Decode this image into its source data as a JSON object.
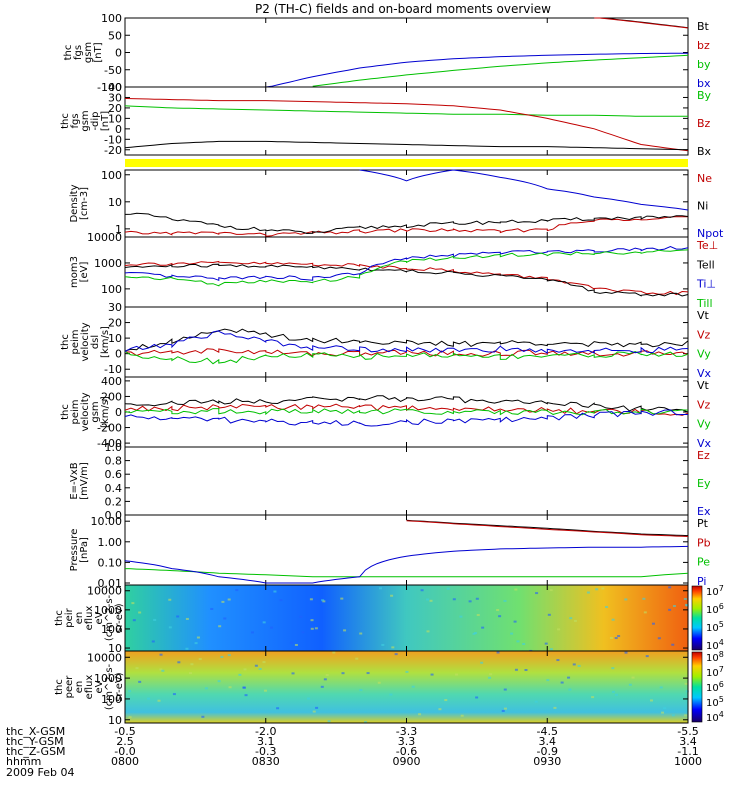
{
  "title": "P2 (TH-C) fields and on-board moments overview",
  "date": "2009 Feb 04",
  "footer": {
    "rows": [
      {
        "label": "thc_X-GSM",
        "values": [
          "-0.5",
          "-2.0",
          "-3.3",
          "-4.5",
          "-5.5"
        ]
      },
      {
        "label": "thc_Y-GSM",
        "values": [
          "2.5",
          "3.1",
          "3.3",
          "3.4",
          "3.4"
        ]
      },
      {
        "label": "thc_Z-GSM",
        "values": [
          "-0.0",
          "-0.3",
          "-0.6",
          "-0.9",
          "-1.1"
        ]
      },
      {
        "label": "hhmm",
        "values": [
          "0800",
          "0830",
          "0900",
          "0930",
          "1000"
        ]
      }
    ]
  },
  "colors": {
    "black": "#000000",
    "red": "#c00000",
    "green": "#00c000",
    "blue": "#0000d0",
    "yellow": "#ffff00"
  },
  "chart_data": [
    {
      "type": "line",
      "ylabel": [
        "thc",
        "fgs",
        "gsm",
        "[nT]"
      ],
      "scale": "linear",
      "ylim": [
        -100,
        100
      ],
      "yticks": [
        "100",
        "50",
        "0",
        "-50",
        "-100"
      ],
      "x": [
        0,
        10,
        20,
        30,
        40,
        50,
        60,
        70,
        80,
        90,
        100,
        110,
        120
      ],
      "series": [
        {
          "name": "Bt",
          "color": "#000000",
          "values": [
            null,
            null,
            null,
            null,
            null,
            null,
            null,
            null,
            null,
            null,
            103,
            88,
            72
          ]
        },
        {
          "name": "bz",
          "color": "#c00000",
          "values": [
            null,
            null,
            null,
            null,
            null,
            null,
            null,
            null,
            null,
            null,
            102,
            87,
            71
          ]
        },
        {
          "name": "by",
          "color": "#00c000",
          "values": [
            null,
            null,
            null,
            null,
            -98,
            -80,
            -65,
            -52,
            -40,
            -30,
            -22,
            -15,
            -8
          ]
        },
        {
          "name": "bx",
          "color": "#0000d0",
          "values": [
            null,
            null,
            null,
            -102,
            -70,
            -45,
            -28,
            -18,
            -12,
            -8,
            -5,
            -3,
            -2
          ]
        }
      ]
    },
    {
      "type": "line",
      "ylabel": [
        "thc",
        "fgs",
        "gsm",
        "-dip",
        "[nT]"
      ],
      "scale": "linear",
      "ylim": [
        -25,
        40
      ],
      "yticks": [
        "40",
        "30",
        "20",
        "10",
        "0",
        "-10",
        "-20"
      ],
      "x": [
        0,
        10,
        20,
        30,
        40,
        50,
        60,
        70,
        80,
        90,
        100,
        110,
        120
      ],
      "series": [
        {
          "name": "By",
          "color": "#00c000",
          "values": [
            22,
            20,
            19,
            18,
            17,
            16,
            15,
            14,
            14,
            13,
            13,
            12,
            12
          ]
        },
        {
          "name": "Bz",
          "color": "#c00000",
          "values": [
            29,
            28,
            27,
            27,
            26,
            25,
            24,
            22,
            18,
            10,
            0,
            -15,
            -21
          ]
        },
        {
          "name": "Bx",
          "color": "#000000",
          "values": [
            -18,
            -14,
            -12,
            -12,
            -13,
            -14,
            -15,
            -16,
            -17,
            -17,
            -18,
            -19,
            -20
          ]
        }
      ]
    },
    {
      "type": "line",
      "ylabel": [
        "Density",
        "[cm-3]"
      ],
      "scale": "log",
      "ylim": [
        0.5,
        150
      ],
      "yticks": [
        "100",
        "10",
        "1"
      ],
      "x": [
        0,
        10,
        20,
        30,
        40,
        50,
        60,
        70,
        80,
        90,
        100,
        110,
        120
      ],
      "series": [
        {
          "name": "Ne",
          "color": "#c00000",
          "values": [
            0.7,
            0.7,
            0.7,
            0.6,
            0.7,
            0.8,
            0.9,
            0.9,
            0.8,
            1.0,
            2.0,
            2.5,
            2.8
          ]
        },
        {
          "name": "Ni",
          "color": "#000000",
          "values": [
            4.0,
            2.2,
            1.3,
            0.9,
            0.7,
            1.1,
            1.3,
            1.6,
            1.8,
            2.0,
            2.4,
            2.6,
            2.7
          ]
        },
        {
          "name": "Npot",
          "color": "#0000d0",
          "values": [
            null,
            null,
            null,
            null,
            null,
            150,
            60,
            150,
            80,
            30,
            15,
            8,
            5
          ]
        }
      ]
    },
    {
      "type": "line",
      "ylabel": [
        "mom3",
        "[eV]"
      ],
      "scale": "log",
      "ylim": [
        20,
        10000
      ],
      "yticks": [
        "10000",
        "1000",
        "100"
      ],
      "x": [
        0,
        10,
        20,
        30,
        40,
        50,
        60,
        70,
        80,
        90,
        100,
        110,
        120
      ],
      "series": [
        {
          "name": "Te⊥",
          "color": "#c00000",
          "values": [
            900,
            950,
            1000,
            950,
            900,
            800,
            650,
            500,
            350,
            250,
            100,
            70,
            70
          ]
        },
        {
          "name": "Tell",
          "color": "#000000",
          "values": [
            700,
            750,
            800,
            750,
            700,
            600,
            500,
            400,
            320,
            220,
            80,
            60,
            60
          ]
        },
        {
          "name": "Ti⊥",
          "color": "#0000d0",
          "values": [
            400,
            300,
            250,
            300,
            250,
            400,
            1500,
            2000,
            2500,
            2800,
            3000,
            3500,
            4000
          ]
        },
        {
          "name": "Till",
          "color": "#00c000",
          "values": [
            300,
            250,
            150,
            200,
            180,
            300,
            1200,
            1600,
            2000,
            2200,
            2400,
            2600,
            2800
          ]
        }
      ]
    },
    {
      "type": "line",
      "ylabel": [
        "thc",
        "peim",
        "velocity",
        "dsl",
        "[km/s]"
      ],
      "scale": "linear",
      "ylim": [
        -15,
        30
      ],
      "yticks": [
        "30",
        "20",
        "10",
        "0",
        "-10"
      ],
      "x": [
        0,
        10,
        20,
        30,
        40,
        50,
        60,
        70,
        80,
        90,
        100,
        110,
        120
      ],
      "series": [
        {
          "name": "Vt",
          "color": "#000000",
          "values": [
            3,
            8,
            16,
            12,
            9,
            8,
            7,
            6,
            7,
            7,
            6,
            6,
            7
          ]
        },
        {
          "name": "Vz",
          "color": "#c00000",
          "values": [
            0,
            1,
            2,
            1,
            0,
            0,
            1,
            0,
            0,
            1,
            0,
            0,
            1
          ]
        },
        {
          "name": "Vy",
          "color": "#00c000",
          "values": [
            0,
            -3,
            -5,
            -2,
            -1,
            -2,
            -1,
            -1,
            -2,
            -1,
            -1,
            0,
            -1
          ]
        },
        {
          "name": "Vx",
          "color": "#0000d0",
          "values": [
            2,
            6,
            14,
            8,
            4,
            3,
            3,
            2,
            3,
            2,
            2,
            2,
            3
          ]
        }
      ]
    },
    {
      "type": "line",
      "ylabel": [
        "thc",
        "peim",
        "velocity",
        "gsm",
        "[km/s]"
      ],
      "scale": "linear",
      "ylim": [
        -450,
        450
      ],
      "yticks": [
        "400",
        "200",
        "0",
        "-200",
        "-400"
      ],
      "x": [
        0,
        10,
        20,
        30,
        40,
        50,
        60,
        70,
        80,
        90,
        100,
        110,
        120
      ],
      "series": [
        {
          "name": "Vt",
          "color": "#000000",
          "values": [
            100,
            120,
            130,
            140,
            160,
            180,
            170,
            160,
            140,
            120,
            80,
            40,
            30
          ]
        },
        {
          "name": "Vz",
          "color": "#c00000",
          "values": [
            40,
            50,
            60,
            60,
            70,
            60,
            50,
            40,
            30,
            20,
            10,
            0,
            -10
          ]
        },
        {
          "name": "Vy",
          "color": "#00c000",
          "values": [
            0,
            10,
            10,
            0,
            10,
            0,
            10,
            0,
            0,
            0,
            0,
            0,
            0
          ]
        },
        {
          "name": "Vx",
          "color": "#0000d0",
          "values": [
            -60,
            -80,
            -100,
            -120,
            -140,
            -150,
            -130,
            -120,
            -100,
            -80,
            -40,
            -10,
            0
          ]
        }
      ]
    },
    {
      "type": "line",
      "ylabel": [
        "E=-VxB",
        "[mV/m]"
      ],
      "scale": "linear",
      "ylim": [
        0,
        1
      ],
      "yticks": [
        "1.0",
        "0.8",
        "0.6",
        "0.4",
        "0.2",
        "0.0"
      ],
      "x": [
        0,
        120
      ],
      "series": [
        {
          "name": "Ez",
          "color": "#c00000",
          "values": [
            null,
            null
          ]
        },
        {
          "name": "Ey",
          "color": "#00c000",
          "values": [
            null,
            null
          ]
        },
        {
          "name": "Ex",
          "color": "#0000d0",
          "values": [
            null,
            null
          ]
        }
      ]
    },
    {
      "type": "line",
      "ylabel": [
        "Pressure",
        "[nPa]"
      ],
      "scale": "log",
      "ylim": [
        0.008,
        20
      ],
      "yticks": [
        "10.00",
        "1.00",
        "0.10",
        "0.01"
      ],
      "x": [
        0,
        10,
        20,
        30,
        40,
        50,
        60,
        70,
        80,
        90,
        100,
        110,
        120
      ],
      "series": [
        {
          "name": "Pt",
          "color": "#000000",
          "values": [
            null,
            null,
            null,
            null,
            null,
            null,
            11,
            8,
            6,
            4.5,
            3.2,
            2.4,
            2.0
          ]
        },
        {
          "name": "Pb",
          "color": "#c00000",
          "values": [
            null,
            null,
            null,
            null,
            null,
            null,
            10.5,
            7.5,
            5.5,
            4,
            3,
            2.2,
            1.8
          ]
        },
        {
          "name": "Pe",
          "color": "#00c000",
          "values": [
            0.05,
            0.04,
            0.03,
            0.025,
            0.02,
            0.02,
            0.02,
            0.02,
            0.02,
            0.02,
            0.02,
            0.02,
            0.03
          ]
        },
        {
          "name": "Pi",
          "color": "#0000d0",
          "values": [
            0.12,
            0.05,
            0.02,
            0.01,
            0.01,
            0.02,
            0.2,
            0.35,
            0.45,
            0.5,
            0.55,
            0.55,
            0.6
          ]
        }
      ]
    },
    {
      "type": "heatmap",
      "ylabel": [
        "thc",
        "peir",
        "en",
        "eflux",
        "eV",
        "(cm^2-s-",
        "sr-eV)"
      ],
      "scale": "log",
      "ylim": [
        7,
        20000
      ],
      "yticks": [
        "10000",
        "1000",
        "100",
        "10"
      ],
      "colorbar": {
        "ticks": [
          "10^7",
          "10^6",
          "10^5",
          "10^4"
        ],
        "range": [
          3,
          7.3
        ]
      }
    },
    {
      "type": "heatmap",
      "ylabel": [
        "thc",
        "peer",
        "en",
        "eflux",
        "eV",
        "(cm^2-s-",
        "sr-eV)"
      ],
      "scale": "log",
      "ylim": [
        7,
        20000
      ],
      "yticks": [
        "10000",
        "1000",
        "100",
        "10"
      ],
      "colorbar": {
        "ticks": [
          "10^8",
          "10^7",
          "10^6",
          "10^5",
          "10^4"
        ],
        "range": [
          3.7,
          8.1
        ]
      }
    }
  ]
}
